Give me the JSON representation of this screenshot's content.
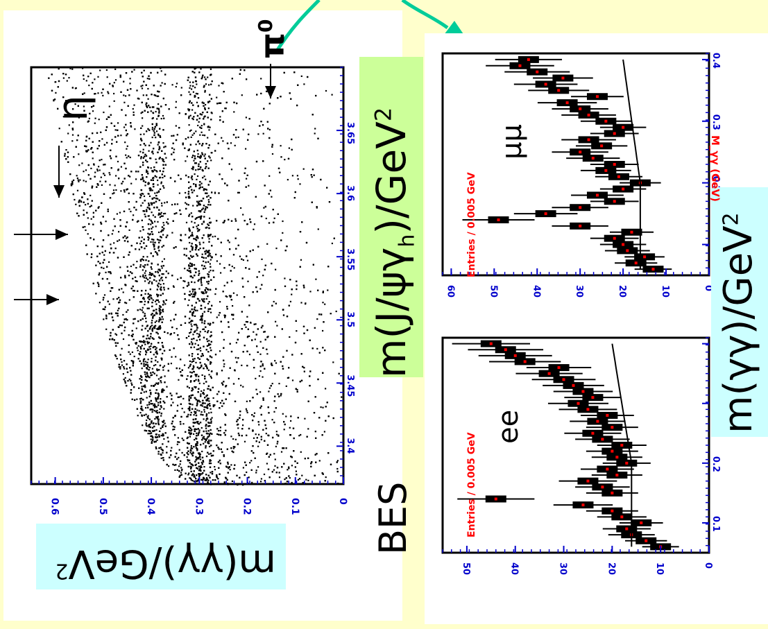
{
  "experiment_label": "BES",
  "scatter": {
    "x_label": "m(J/ψγ_h)/GeV²",
    "x_label_main": "m(J/ψγ",
    "x_label_sub": "h",
    "x_label_tail": ")/GeV",
    "y_label": "m(γγ)/GeV²",
    "y_label_main": "m(γγ)/GeV",
    "x_ticks": [
      "3.4",
      "3.45",
      "3.5",
      "3.55",
      "3.6",
      "3.65"
    ],
    "y_ticks": [
      "0.6",
      "0.5",
      "0.4",
      "0.3",
      "0.2",
      "0.1",
      "0"
    ],
    "particles": {
      "eta": "η",
      "pi0": "π",
      "pi0_sup": "0"
    }
  },
  "histograms": {
    "x_label": "m(γγ)/GeV²",
    "x_label_main": "m(γγ)/GeV",
    "x_axis_title": "M_γγ (GeV)",
    "y_axis_title": "Entries / 0.005 GeV",
    "x_ticks": [
      "0.1",
      "0.2",
      "0.3",
      "0.4"
    ],
    "panels": [
      {
        "name": "ee",
        "y_ticks": [
          "0",
          "10",
          "20",
          "30",
          "40",
          "50"
        ]
      },
      {
        "name": "μμ",
        "y_ticks": [
          "0",
          "10",
          "20",
          "30",
          "40",
          "50",
          "60"
        ]
      }
    ]
  },
  "colors": {
    "background": "#ffffcc",
    "axis_blue": "#0000cc",
    "axis_red": "#ff0000",
    "label_green_bg": "#ccff99",
    "label_cyan_bg": "#ccffff",
    "arrow_teal": "#00cc99"
  },
  "chart_data": [
    {
      "type": "scatter",
      "title": "",
      "xlabel": "m(J/ψγ_h)/GeV²",
      "ylabel": "m(γγ)/GeV²",
      "xlim": [
        3.37,
        3.7
      ],
      "ylim": [
        0,
        0.65
      ],
      "note": "dense Dalitz-like scatter with horizontal bands at eta^2 and pi0^2 region",
      "bands_y": [
        0.3,
        0.4
      ],
      "grid": false
    },
    {
      "type": "line",
      "title": "",
      "xlabel": "M_γγ (GeV)",
      "ylabel": "Entries / 0.005 GeV",
      "series": [
        {
          "name": "ee",
          "x": [
            0.06,
            0.07,
            0.08,
            0.09,
            0.1,
            0.11,
            0.12,
            0.13,
            0.14,
            0.15,
            0.16,
            0.17,
            0.18,
            0.19,
            0.2,
            0.21,
            0.22,
            0.23,
            0.24,
            0.25,
            0.26,
            0.27,
            0.28,
            0.29,
            0.3,
            0.31,
            0.32,
            0.33,
            0.34,
            0.35,
            0.36,
            0.37,
            0.38,
            0.39,
            0.4
          ],
          "values": [
            10,
            13,
            16,
            17,
            14,
            18,
            20,
            26,
            44,
            20,
            22,
            25,
            19,
            21,
            17,
            19,
            20,
            18,
            22,
            24,
            20,
            23,
            21,
            25,
            27,
            24,
            26,
            28,
            30,
            33,
            31,
            38,
            40,
            42,
            45
          ]
        },
        {
          "name": "μμ",
          "x": [
            0.06,
            0.07,
            0.08,
            0.09,
            0.1,
            0.11,
            0.12,
            0.13,
            0.14,
            0.15,
            0.16,
            0.17,
            0.18,
            0.19,
            0.2,
            0.21,
            0.22,
            0.23,
            0.24,
            0.25,
            0.26,
            0.27,
            0.28,
            0.29,
            0.3,
            0.31,
            0.32,
            0.33,
            0.34,
            0.35,
            0.36,
            0.37,
            0.38,
            0.39,
            0.4
          ],
          "values": [
            13,
            17,
            15,
            19,
            20,
            22,
            18,
            30,
            49,
            38,
            30,
            22,
            26,
            20,
            16,
            21,
            24,
            22,
            27,
            30,
            25,
            28,
            22,
            20,
            24,
            28,
            30,
            33,
            26,
            35,
            38,
            34,
            40,
            44,
            42
          ]
        }
      ],
      "xlim": [
        0.05,
        0.41
      ],
      "ylim": [
        0,
        60
      ]
    }
  ]
}
